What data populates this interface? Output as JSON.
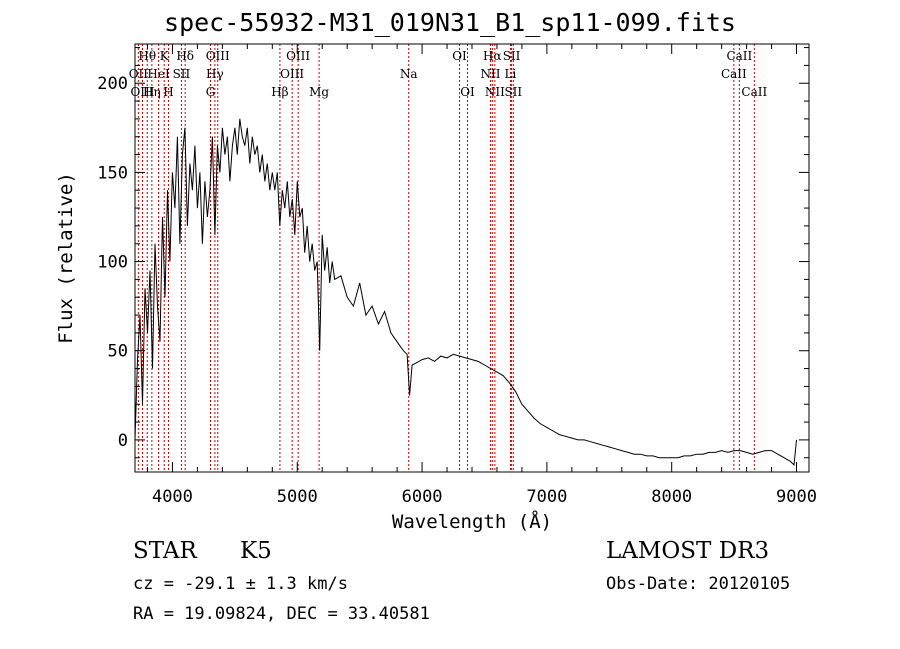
{
  "header": {
    "title": "spec-55932-M31_019N31_B1_sp11-099.fits"
  },
  "info": {
    "class": "STAR",
    "subclass": "K5",
    "survey": "LAMOST DR3",
    "cz": "cz = -29.1 ± 1.3 km/s",
    "obs_date": "Obs-Date: 20120105",
    "radec": "RA =  19.09824, DEC =  33.40581"
  },
  "colors": {
    "line": "#000000",
    "marker": "#cc0000"
  },
  "chart_data": {
    "type": "line",
    "title": "spec-55932-M31_019N31_B1_sp11-099.fits",
    "xlabel": "Wavelength (Å)",
    "ylabel": "Flux (relative)",
    "xlim": [
      3700,
      9100
    ],
    "ylim": [
      -18,
      222
    ],
    "xticks": [
      4000,
      5000,
      6000,
      7000,
      8000,
      9000
    ],
    "yticks": [
      0,
      50,
      100,
      150,
      200
    ],
    "grid": false,
    "series": [
      {
        "name": "flux",
        "x": [
          3700,
          3720,
          3740,
          3760,
          3780,
          3800,
          3820,
          3840,
          3860,
          3880,
          3900,
          3920,
          3940,
          3960,
          3980,
          4000,
          4020,
          4040,
          4060,
          4080,
          4100,
          4120,
          4140,
          4160,
          4180,
          4200,
          4220,
          4240,
          4260,
          4280,
          4300,
          4320,
          4340,
          4360,
          4380,
          4400,
          4420,
          4440,
          4460,
          4480,
          4500,
          4520,
          4540,
          4560,
          4580,
          4600,
          4620,
          4640,
          4660,
          4680,
          4700,
          4720,
          4740,
          4760,
          4780,
          4800,
          4820,
          4840,
          4860,
          4880,
          4900,
          4920,
          4940,
          4960,
          4980,
          5000,
          5020,
          5040,
          5060,
          5080,
          5100,
          5120,
          5140,
          5160,
          5180,
          5200,
          5220,
          5240,
          5260,
          5280,
          5300,
          5350,
          5400,
          5450,
          5500,
          5550,
          5600,
          5650,
          5700,
          5750,
          5800,
          5850,
          5880,
          5900,
          5920,
          5950,
          6000,
          6050,
          6100,
          6150,
          6200,
          6250,
          6300,
          6350,
          6400,
          6450,
          6500,
          6550,
          6600,
          6650,
          6700,
          6750,
          6800,
          6850,
          6900,
          6950,
          7000,
          7050,
          7100,
          7150,
          7200,
          7250,
          7300,
          7350,
          7400,
          7450,
          7500,
          7550,
          7600,
          7650,
          7700,
          7750,
          7800,
          7850,
          7900,
          7950,
          8000,
          8050,
          8100,
          8150,
          8200,
          8250,
          8300,
          8350,
          8400,
          8450,
          8500,
          8550,
          8600,
          8650,
          8700,
          8750,
          8800,
          8850,
          8900,
          8950,
          8980,
          9000
        ],
        "y": [
          0,
          45,
          70,
          20,
          85,
          60,
          95,
          40,
          110,
          75,
          55,
          125,
          80,
          140,
          100,
          150,
          130,
          170,
          110,
          160,
          175,
          120,
          155,
          140,
          165,
          130,
          150,
          110,
          145,
          125,
          140,
          170,
          115,
          165,
          150,
          175,
          160,
          170,
          145,
          165,
          175,
          160,
          180,
          170,
          165,
          175,
          155,
          170,
          160,
          165,
          150,
          160,
          145,
          155,
          140,
          150,
          140,
          150,
          120,
          140,
          130,
          145,
          125,
          135,
          115,
          145,
          125,
          130,
          105,
          120,
          100,
          110,
          95,
          100,
          50,
          115,
          95,
          108,
          88,
          100,
          90,
          92,
          80,
          75,
          88,
          70,
          75,
          65,
          72,
          60,
          55,
          50,
          48,
          25,
          42,
          43,
          45,
          46,
          44,
          47,
          46,
          48,
          47,
          46,
          45,
          44,
          42,
          40,
          38,
          36,
          32,
          27,
          20,
          16,
          12,
          9,
          7,
          5,
          3,
          2,
          1,
          0,
          0,
          -1,
          -2,
          -3,
          -4,
          -5,
          -6,
          -7,
          -8,
          -8,
          -9,
          -9,
          -10,
          -10,
          -10,
          -10,
          -9,
          -9,
          -8,
          -8,
          -7,
          -7,
          -6,
          -7,
          -6,
          -6,
          -7,
          -8,
          -7,
          -6,
          -6,
          -8,
          -10,
          -12,
          -14,
          0
        ]
      }
    ],
    "lines": [
      {
        "name": "Hθ",
        "x": 3798,
        "row": 0
      },
      {
        "name": "OII",
        "x": 3727,
        "row": 1
      },
      {
        "name": "OIII",
        "x": 3760,
        "row": 2
      },
      {
        "name": "Hη",
        "x": 3835,
        "row": 2
      },
      {
        "name": "HeI",
        "x": 3889,
        "row": 1
      },
      {
        "name": "K",
        "x": 3934,
        "row": 0
      },
      {
        "name": "H",
        "x": 3968,
        "row": 2
      },
      {
        "name": "SII",
        "x": 4072,
        "row": 1
      },
      {
        "name": "Hδ",
        "x": 4102,
        "row": 0
      },
      {
        "name": "OIII",
        "x": 4363,
        "row": 0
      },
      {
        "name": "Hγ",
        "x": 4340,
        "row": 1
      },
      {
        "name": "G",
        "x": 4305,
        "row": 2
      },
      {
        "name": "Hβ",
        "x": 4861,
        "row": 2
      },
      {
        "name": "OIII",
        "x": 5007,
        "row": 0
      },
      {
        "name": "OIII",
        "x": 4959,
        "row": 1
      },
      {
        "name": "Mg",
        "x": 5175,
        "row": 2
      },
      {
        "name": "Na",
        "x": 5893,
        "row": 1
      },
      {
        "name": "OI",
        "x": 6300,
        "row": 0
      },
      {
        "name": "OI",
        "x": 6364,
        "row": 2
      },
      {
        "name": "Hα",
        "x": 6563,
        "row": 0
      },
      {
        "name": "NII",
        "x": 6548,
        "row": 1
      },
      {
        "name": "NII",
        "x": 6583,
        "row": 2
      },
      {
        "name": "SII",
        "x": 6717,
        "row": 0
      },
      {
        "name": "Li",
        "x": 6708,
        "row": 1
      },
      {
        "name": "SII",
        "x": 6731,
        "row": 2
      },
      {
        "name": "CaII",
        "x": 8542,
        "row": 0
      },
      {
        "name": "CaII",
        "x": 8498,
        "row": 1
      },
      {
        "name": "CaII",
        "x": 8662,
        "row": 2
      }
    ]
  }
}
